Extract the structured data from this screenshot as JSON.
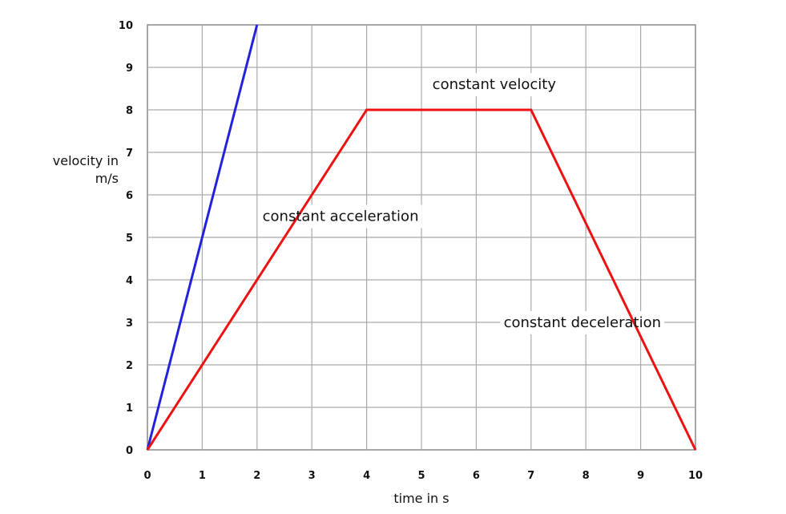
{
  "chart_data": {
    "type": "line",
    "xlabel": "time in s",
    "ylabel_lines": [
      "velocity in",
      "m/s"
    ],
    "xlim": [
      0,
      10
    ],
    "ylim": [
      0,
      10
    ],
    "x_ticks": [
      "0",
      "1",
      "2",
      "3",
      "4",
      "5",
      "6",
      "7",
      "8",
      "9",
      "10"
    ],
    "y_ticks": [
      "0",
      "1",
      "2",
      "3",
      "4",
      "5",
      "6",
      "7",
      "8",
      "9",
      "10"
    ],
    "grid": true,
    "series": [
      {
        "color": "#2222dd",
        "points": [
          [
            0,
            0
          ],
          [
            2,
            10
          ]
        ]
      },
      {
        "color": "#ee1111",
        "points": [
          [
            0,
            0
          ],
          [
            4,
            8
          ],
          [
            7,
            8
          ],
          [
            10,
            0
          ]
        ]
      }
    ],
    "annotations": [
      {
        "text": "constant velocity",
        "x": 5.2,
        "y": 8.6
      },
      {
        "text": "constant acceleration",
        "x": 2.1,
        "y": 5.5
      },
      {
        "text": "constant deceleration",
        "x": 6.5,
        "y": 3.0
      }
    ]
  }
}
